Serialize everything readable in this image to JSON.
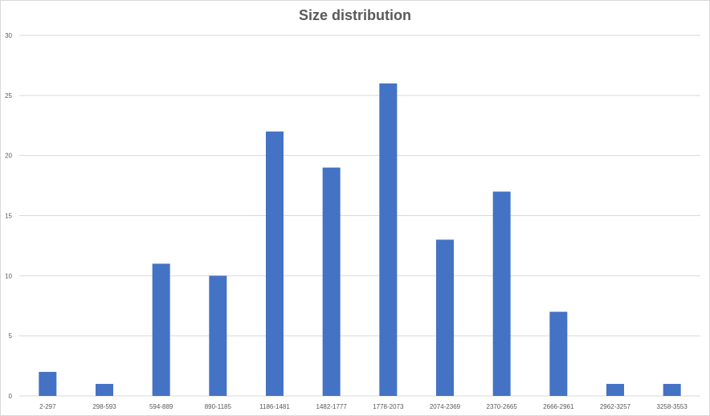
{
  "chart_data": {
    "type": "bar",
    "title": "Size distribution",
    "xlabel": "",
    "ylabel": "",
    "categories": [
      "2-297",
      "298-593",
      "594-889",
      "890-1185",
      "1186-1481",
      "1482-1777",
      "1778-2073",
      "2074-2369",
      "2370-2665",
      "2666-2961",
      "2962-3257",
      "3258-3553"
    ],
    "values": [
      2,
      1,
      11,
      10,
      22,
      19,
      26,
      13,
      17,
      7,
      1,
      1
    ],
    "ylim": [
      0,
      30
    ],
    "yticks": [
      0,
      5,
      10,
      15,
      20,
      25,
      30
    ],
    "grid": true,
    "legend": "none",
    "bar_color": "#4472C4"
  }
}
